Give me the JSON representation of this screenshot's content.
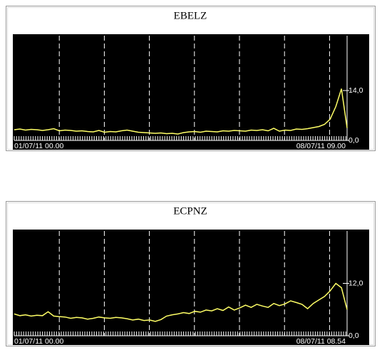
{
  "chart_data": [
    {
      "type": "line",
      "title": "EBELZ",
      "categories": [
        "01/07/11 00.00",
        null,
        null,
        null,
        null,
        null,
        null,
        null,
        null,
        null,
        null,
        null,
        null,
        null,
        null,
        null,
        null,
        null,
        null,
        null,
        null,
        null,
        null,
        null,
        null,
        null,
        null,
        null,
        null,
        null,
        null,
        null,
        null,
        null,
        null,
        null,
        null,
        null,
        null,
        null,
        null,
        null,
        null,
        null,
        null,
        null,
        null,
        null,
        null,
        null,
        null,
        null,
        null,
        null,
        null,
        null,
        null,
        null,
        null,
        "08/07/11 09.00"
      ],
      "series": [
        {
          "color": "#ffff66",
          "values": [
            3.0,
            3.2,
            2.9,
            3.1,
            3.0,
            2.8,
            3.0,
            3.3,
            2.7,
            2.9,
            2.8,
            2.6,
            2.7,
            2.5,
            2.4,
            2.8,
            2.3,
            2.5,
            2.4,
            2.7,
            2.9,
            2.6,
            2.3,
            2.2,
            2.1,
            2.0,
            2.1,
            1.9,
            2.0,
            1.8,
            2.2,
            2.4,
            2.5,
            2.3,
            2.6,
            2.5,
            2.4,
            2.7,
            2.6,
            2.8,
            2.7,
            2.6,
            2.9,
            2.8,
            3.0,
            2.7,
            3.4,
            2.6,
            2.9,
            2.8,
            3.2,
            3.1,
            3.3,
            3.6,
            3.9,
            4.5,
            6.0,
            9.5,
            14.5,
            3.5
          ]
        }
      ],
      "ylim": [
        0,
        29.4
      ],
      "yticks": [
        {
          "value": 0,
          "label": "0,0"
        },
        {
          "value": 14,
          "label": "14,0"
        }
      ],
      "grid": true
    },
    {
      "type": "line",
      "title": "ECPNZ",
      "categories": [
        "01/07/11 00.00",
        null,
        null,
        null,
        null,
        null,
        null,
        null,
        null,
        null,
        null,
        null,
        null,
        null,
        null,
        null,
        null,
        null,
        null,
        null,
        null,
        null,
        null,
        null,
        null,
        null,
        null,
        null,
        null,
        null,
        null,
        null,
        null,
        null,
        null,
        null,
        null,
        null,
        null,
        null,
        null,
        null,
        null,
        null,
        null,
        null,
        null,
        null,
        null,
        null,
        null,
        null,
        null,
        null,
        null,
        null,
        null,
        null,
        null,
        "08/07/11 08.54"
      ],
      "series": [
        {
          "color": "#ffff66",
          "values": [
            5.0,
            4.6,
            4.8,
            4.5,
            4.7,
            4.6,
            5.5,
            4.5,
            4.4,
            4.3,
            4.0,
            4.2,
            4.1,
            3.8,
            4.0,
            4.3,
            4.1,
            4.0,
            4.2,
            4.1,
            3.9,
            3.6,
            3.8,
            3.5,
            3.6,
            3.3,
            3.7,
            4.5,
            4.8,
            5.0,
            5.3,
            5.1,
            5.6,
            5.4,
            5.9,
            5.7,
            6.2,
            5.8,
            6.6,
            5.9,
            6.4,
            7.0,
            6.5,
            7.2,
            6.8,
            6.5,
            7.4,
            6.9,
            7.3,
            8.0,
            7.6,
            7.2,
            6.2,
            7.4,
            8.2,
            9.0,
            10.3,
            12.0,
            11.0,
            6.0
          ]
        }
      ],
      "ylim": [
        0,
        24
      ],
      "yticks": [
        {
          "value": 0,
          "label": "0,0"
        },
        {
          "value": 12,
          "label": "12,0"
        }
      ],
      "grid": true
    }
  ]
}
